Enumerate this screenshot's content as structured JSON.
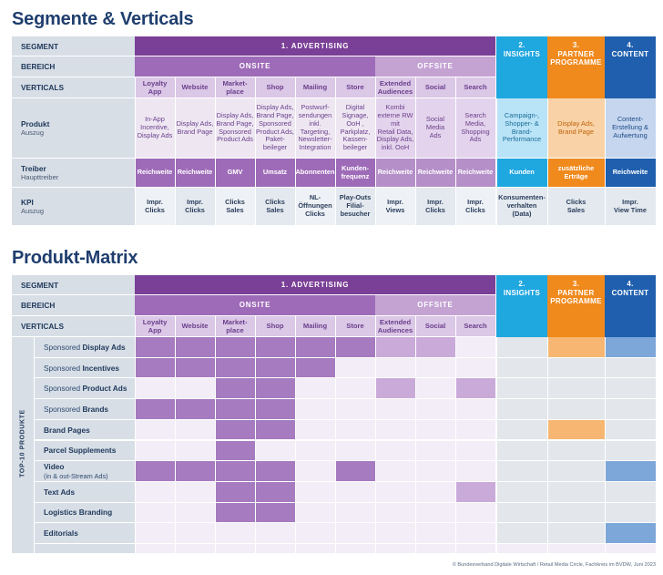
{
  "sec1": {
    "title": "Segmente & Verticals"
  },
  "sec2": {
    "title": "Produkt-Matrix"
  },
  "labels": {
    "segment": "SEGMENT",
    "bereich": "BEREICH",
    "verticals": "VERTICALS",
    "produkt": "Produkt",
    "produkt_sub": "Auszug",
    "treiber": "Treiber",
    "treiber_sub": "Haupttreiber",
    "kpi": "KPI",
    "kpi_sub": "Auszug",
    "top10": "TOP-10 PRODUKTE"
  },
  "segments": {
    "advertising": "1. ADVERTISING",
    "insights": "2.\nINSIGHTS",
    "partner": "3.\nPARTNER\nPROGRAMME",
    "content": "4.\nCONTENT"
  },
  "bereich": {
    "onsite": "ONSITE",
    "offsite": "OFFSITE"
  },
  "verticals": [
    "Loyalty\nApp",
    "Website",
    "Market-\nplace",
    "Shop",
    "Mailing",
    "Store",
    "Extended\nAudiences",
    "Social",
    "Search"
  ],
  "produkt": [
    "In-App\nIncentive,\nDisplay Ads",
    "Display Ads,\nBrand Page",
    "Display Ads,\nBrand Page,\nSponsored\nProduct Ads",
    "Display Ads,\nBrand Page,\nSponsored\nProduct Ads,\nPaket-\nbeileger",
    "Postwurf-\nsendungen\ninkl.\nTargeting,\nNewsletter-\nIntegration",
    "Digital\nSignage,\nOoH ,\nParkplatz,\nKassen-\nbeileger",
    "Kombi\nexterne RW\nmit\nRetail Data,\nDisplay Ads,\ninkl. OoH",
    "Social\nMedia\nAds",
    "Search\nMedia,\nShopping\nAds",
    "Campaign-,\nShopper- &\nBrand-\nPerformance",
    "Display Ads,\nBrand Page",
    "Content-\nErstellung &\nAufwertung"
  ],
  "treiber": [
    "Reichweite",
    "Reichweite",
    "GMV",
    "Umsatz",
    "Abonnenten",
    "Kunden-\nfrequenz",
    "Reichweite",
    "Reichweite",
    "Reichweite",
    "Kunden",
    "zusätzliche\nErträge",
    "Reichweite"
  ],
  "kpi": [
    "Impr.\nClicks",
    "Impr.\nClicks",
    "Clicks\nSales",
    "Clicks\nSales",
    "NL-\nÖffnungen\nClicks",
    "Play-Outs\nFilial-\nbesucher",
    "Impr.\nViews",
    "Impr.\nClicks",
    "Impr.\nClicks",
    "Konsumenten-\nverhalten\n(Data)",
    "Clicks\nSales",
    "Impr.\nView Time"
  ],
  "products": [
    {
      "pre": "Sponsored ",
      "main": "Display Ads",
      "m": [
        3,
        3,
        3,
        3,
        3,
        3,
        2,
        2,
        1,
        0,
        2,
        3
      ]
    },
    {
      "pre": "Sponsored ",
      "main": "Incentives",
      "m": [
        3,
        3,
        3,
        3,
        3,
        1,
        1,
        1,
        1,
        0,
        0,
        0
      ]
    },
    {
      "pre": "Sponsored ",
      "main": "Product Ads",
      "m": [
        1,
        1,
        3,
        3,
        1,
        1,
        2,
        1,
        2,
        0,
        0,
        0
      ]
    },
    {
      "pre": "Sponsored ",
      "main": "Brands",
      "m": [
        3,
        3,
        3,
        3,
        1,
        1,
        1,
        1,
        1,
        0,
        0,
        0
      ]
    },
    {
      "pre": "",
      "main": "Brand Pages",
      "m": [
        1,
        1,
        3,
        3,
        1,
        1,
        1,
        1,
        1,
        0,
        2,
        0
      ]
    },
    {
      "pre": "",
      "main": "Parcel Supplements",
      "m": [
        1,
        1,
        3,
        1,
        1,
        1,
        1,
        1,
        1,
        0,
        0,
        0
      ]
    },
    {
      "pre": "",
      "main": "Video",
      "sub": "(in & out-Stream Ads)",
      "m": [
        3,
        3,
        3,
        3,
        1,
        3,
        1,
        1,
        1,
        0,
        0,
        3
      ]
    },
    {
      "pre": "",
      "main": "Text Ads",
      "m": [
        1,
        1,
        3,
        3,
        1,
        1,
        1,
        1,
        2,
        0,
        0,
        0
      ]
    },
    {
      "pre": "",
      "main": "Logistics Branding",
      "m": [
        1,
        1,
        3,
        3,
        1,
        1,
        1,
        1,
        1,
        0,
        0,
        0
      ]
    },
    {
      "pre": "",
      "main": "Editorials",
      "m": [
        1,
        1,
        1,
        1,
        1,
        1,
        1,
        1,
        1,
        0,
        0,
        3
      ]
    }
  ],
  "footer": "© Bundesverband Digitale Wirtschaft / Retail Media Circle, Fachkreis im BVDW, Juni 2023",
  "colors": {
    "advertising": "#7a3f96",
    "onsite": "#9e6bb8",
    "offsite": "#c4a3d3",
    "vert": "#dbc7e6",
    "insights": "#1fa7e0",
    "partner": "#f08a1d",
    "content": "#1f5fae"
  }
}
